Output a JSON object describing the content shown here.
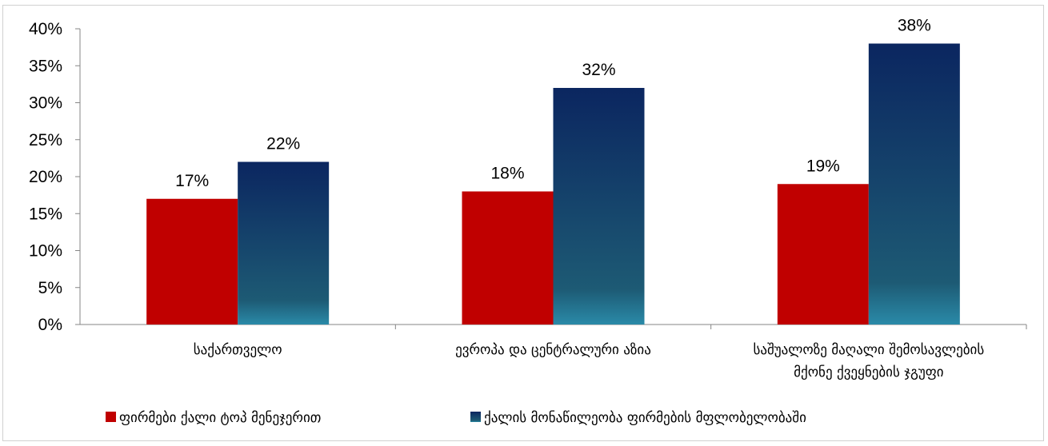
{
  "chart_data": {
    "type": "bar",
    "categories": [
      [
        "საქართველო"
      ],
      [
        "ევროპა და ცენტრალური აზია"
      ],
      [
        "საშუალოზე მაღალი შემოსავლების",
        "მქონე ქვეყნების ჯგუფი"
      ]
    ],
    "series": [
      {
        "name": "ფირმები ქალი ტოპ მენეჯერით",
        "values": [
          17,
          18,
          19
        ],
        "labels": [
          "17%",
          "18%",
          "19%"
        ],
        "color": "#c00000"
      },
      {
        "name": "ქალის მონაწილეობა ფირმების მფლობელობაში",
        "values": [
          22,
          32,
          38
        ],
        "labels": [
          "22%",
          "32%",
          "38%"
        ],
        "color": "#0d2a5e",
        "gradient_bottom": "#2a7f9a"
      }
    ],
    "yticks": [
      "0%",
      "5%",
      "10%",
      "15%",
      "20%",
      "25%",
      "30%",
      "35%",
      "40%"
    ],
    "ylim": [
      0,
      40
    ],
    "grid": false,
    "legend": "bottom"
  }
}
